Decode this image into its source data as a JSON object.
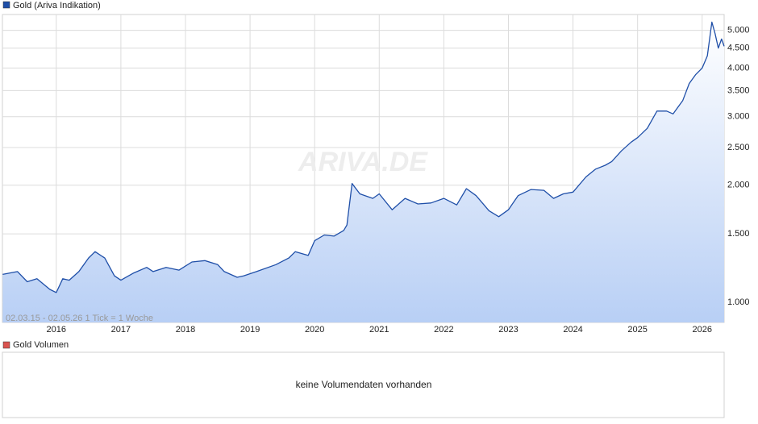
{
  "chart_data": {
    "type": "line",
    "log_scale": true,
    "grid": true,
    "annotation": "02.03.15 - 02.05.26   1 Tick = 1 Woche",
    "watermark": "ARIVA.DE",
    "x": [
      2015.17,
      2015.4,
      2015.55,
      2015.7,
      2015.9,
      2016.0,
      2016.1,
      2016.2,
      2016.35,
      2016.5,
      2016.6,
      2016.75,
      2016.9,
      2017.0,
      2017.2,
      2017.4,
      2017.5,
      2017.7,
      2017.9,
      2018.1,
      2018.3,
      2018.5,
      2018.6,
      2018.8,
      2018.9,
      2019.1,
      2019.4,
      2019.6,
      2019.7,
      2019.9,
      2020.0,
      2020.15,
      2020.3,
      2020.45,
      2020.5,
      2020.58,
      2020.7,
      2020.9,
      2021.0,
      2021.2,
      2021.4,
      2021.6,
      2021.8,
      2022.0,
      2022.2,
      2022.35,
      2022.5,
      2022.7,
      2022.85,
      2023.0,
      2023.15,
      2023.35,
      2023.55,
      2023.7,
      2023.85,
      2024.0,
      2024.2,
      2024.35,
      2024.5,
      2024.6,
      2024.75,
      2024.9,
      2025.0,
      2025.15,
      2025.3,
      2025.45,
      2025.55,
      2025.7,
      2025.8,
      2025.9,
      2026.0,
      2026.08,
      2026.15,
      2026.2,
      2026.25,
      2026.3,
      2026.34
    ],
    "series": [
      {
        "name": "Gold (Ariva Indikation)",
        "color": "#1f4fa8",
        "values": [
          1180,
          1200,
          1130,
          1150,
          1080,
          1060,
          1150,
          1140,
          1200,
          1300,
          1350,
          1300,
          1170,
          1140,
          1190,
          1230,
          1200,
          1230,
          1210,
          1270,
          1280,
          1250,
          1200,
          1160,
          1170,
          1200,
          1250,
          1300,
          1350,
          1320,
          1440,
          1490,
          1480,
          1530,
          1580,
          2020,
          1900,
          1850,
          1900,
          1730,
          1850,
          1790,
          1800,
          1850,
          1780,
          1960,
          1880,
          1720,
          1660,
          1730,
          1880,
          1950,
          1940,
          1850,
          1900,
          1920,
          2100,
          2200,
          2250,
          2300,
          2450,
          2580,
          2650,
          2800,
          3100,
          3100,
          3050,
          3300,
          3650,
          3850,
          4000,
          4300,
          5250,
          4900,
          4500,
          4750,
          4550
        ]
      }
    ],
    "xlim": [
      2015.166,
      2026.34
    ],
    "xticks": [
      2016,
      2017,
      2018,
      2019,
      2020,
      2021,
      2022,
      2023,
      2024,
      2025,
      2026
    ],
    "ylim": [
      888,
      5490
    ],
    "yticks": [
      {
        "value": 1000,
        "label": "1.000"
      },
      {
        "value": 1500,
        "label": "1.500"
      },
      {
        "value": 2000,
        "label": "2.000"
      },
      {
        "value": 2500,
        "label": "2.500"
      },
      {
        "value": 3000,
        "label": "3.000"
      },
      {
        "value": 3500,
        "label": "3.500"
      },
      {
        "value": 4000,
        "label": "4.000"
      },
      {
        "value": 4500,
        "label": "4.500"
      },
      {
        "value": 5000,
        "label": "5.000"
      }
    ]
  },
  "volume_panel": {
    "title": "Gold Volumen",
    "message": "keine Volumendaten vorhanden"
  }
}
